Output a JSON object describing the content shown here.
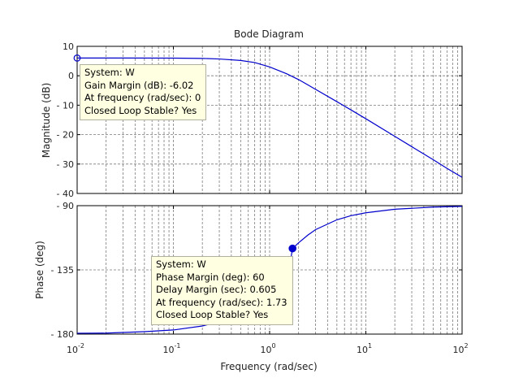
{
  "chart_data": [
    {
      "type": "line",
      "title": "Bode Diagram",
      "ylabel": "Magnitude (dB)",
      "xlabel": "",
      "xscale": "log",
      "xlim": [
        0.01,
        100
      ],
      "ylim": [
        -40,
        10
      ],
      "grid": true,
      "yticks": [
        10,
        0,
        -10,
        -20,
        -30,
        -40
      ],
      "yticklabels": [
        "10",
        "0",
        "- 10",
        "- 20",
        "- 30",
        "- 40"
      ],
      "series": [
        {
          "color": "#0000cc",
          "x": [
            0.01,
            0.03,
            0.1,
            0.2,
            0.3,
            0.5,
            0.7,
            1,
            1.5,
            2,
            3,
            5,
            7,
            10,
            20,
            30,
            50,
            70,
            100
          ],
          "y": [
            6.02,
            6.02,
            6.0,
            5.9,
            5.7,
            5.2,
            4.5,
            3.0,
            0.7,
            -1.3,
            -4.6,
            -8.8,
            -11.6,
            -14.6,
            -20.6,
            -24.1,
            -28.5,
            -31.5,
            -34.5
          ]
        }
      ],
      "marker": {
        "x": 0.01,
        "y": 6.02,
        "style": "hollow circle"
      },
      "datatip": {
        "lines": [
          "System: W",
          "Gain Margin (dB): -6.02",
          "At frequency (rad/sec): 0",
          "Closed Loop Stable? Yes"
        ]
      }
    },
    {
      "type": "line",
      "ylabel": "Phase (deg)",
      "xlabel": "Frequency  (rad/sec)",
      "xscale": "log",
      "xlim": [
        0.01,
        100
      ],
      "ylim": [
        -180,
        -90
      ],
      "grid": true,
      "yticks": [
        -90,
        -135,
        -180
      ],
      "yticklabels": [
        "- 90",
        "- 135",
        "- 180"
      ],
      "xticklabels": [
        {
          "base": "10",
          "exp": "-2"
        },
        {
          "base": "10",
          "exp": "-1"
        },
        {
          "base": "10",
          "exp": "0"
        },
        {
          "base": "10",
          "exp": "1"
        },
        {
          "base": "10",
          "exp": "2"
        }
      ],
      "series": [
        {
          "color": "#0000cc",
          "x": [
            0.01,
            0.02,
            0.05,
            0.1,
            0.2,
            0.3,
            0.5,
            0.7,
            1,
            1.3,
            1.6,
            1.73,
            2,
            2.5,
            3,
            5,
            7,
            10,
            20,
            50,
            100
          ],
          "y": [
            -179.4,
            -179.3,
            -178.3,
            -177.1,
            -174.3,
            -171.4,
            -164.1,
            -156.0,
            -147.6,
            -140.4,
            -134.0,
            -120.0,
            -116.0,
            -110.6,
            -106.8,
            -99.9,
            -97.0,
            -95.0,
            -92.5,
            -91.0,
            -90.5
          ]
        }
      ],
      "marker": {
        "x": 1.73,
        "y": -120,
        "style": "filled circle"
      },
      "datatip": {
        "lines": [
          "System: W",
          "Phase Margin (deg): 60",
          "Delay Margin (sec): 0.605",
          "At frequency (rad/sec): 1.73",
          "Closed Loop Stable? Yes"
        ]
      }
    }
  ]
}
